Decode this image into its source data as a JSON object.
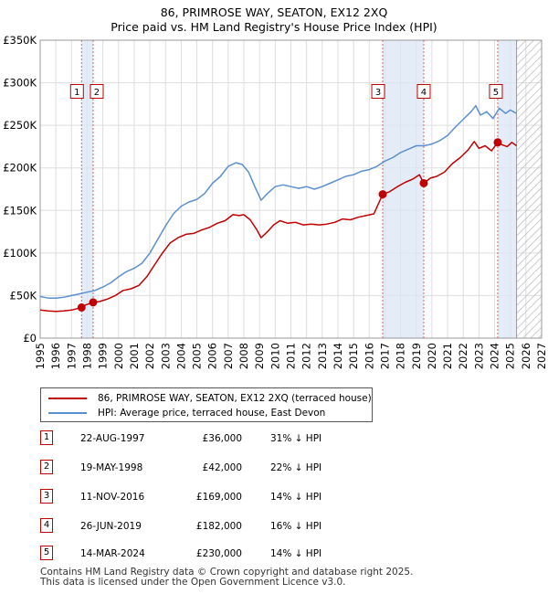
{
  "chart_data": {
    "type": "line",
    "title": "86, PRIMROSE WAY, SEATON, EX12 2XQ",
    "subtitle": "Price paid vs. HM Land Registry's House Price Index (HPI)",
    "xlabel": "",
    "ylabel": "",
    "xlim": [
      1995,
      2027
    ],
    "ylim": [
      0,
      350000
    ],
    "y_ticks": [
      0,
      50000,
      100000,
      150000,
      200000,
      250000,
      300000,
      350000
    ],
    "y_tick_labels": [
      "£0",
      "£50K",
      "£100K",
      "£150K",
      "£200K",
      "£250K",
      "£300K",
      "£350K"
    ],
    "x_ticks": [
      1995,
      1996,
      1997,
      1998,
      1999,
      2000,
      2001,
      2002,
      2003,
      2004,
      2005,
      2006,
      2007,
      2008,
      2009,
      2010,
      2011,
      2012,
      2013,
      2014,
      2015,
      2016,
      2017,
      2018,
      2019,
      2020,
      2021,
      2022,
      2023,
      2024,
      2025,
      2026,
      2027
    ],
    "x_tick_labels": [
      "1995",
      "1996",
      "1997",
      "1998",
      "1999",
      "2000",
      "2001",
      "2002",
      "2003",
      "2004",
      "2005",
      "2006",
      "2007",
      "2008",
      "2009",
      "2010",
      "2011",
      "2012",
      "2013",
      "2014",
      "2015",
      "2016",
      "2017",
      "2018",
      "2019",
      "2020",
      "2021",
      "2022",
      "2023",
      "2024",
      "2025",
      "2026",
      "2027"
    ],
    "grid": true,
    "legend_position": "below",
    "forecast_region_start": 2025.4,
    "series": [
      {
        "name": "86, PRIMROSE WAY, SEATON, EX12 2XQ (terraced house)",
        "color": "#c00000",
        "x": [
          1995.0,
          1995.5,
          1996.0,
          1996.5,
          1997.0,
          1997.64,
          1997.9,
          1998.38,
          1998.8,
          1999.3,
          1999.8,
          2000.3,
          2000.8,
          2001.3,
          2001.8,
          2002.3,
          2002.8,
          2003.3,
          2003.8,
          2004.3,
          2004.8,
          2005.3,
          2005.8,
          2006.3,
          2006.8,
          2007.3,
          2007.7,
          2008.0,
          2008.4,
          2008.8,
          2009.1,
          2009.5,
          2009.9,
          2010.3,
          2010.8,
          2011.3,
          2011.8,
          2012.3,
          2012.8,
          2013.3,
          2013.8,
          2014.3,
          2014.8,
          2015.3,
          2015.8,
          2016.3,
          2016.86,
          2017.3,
          2017.8,
          2018.3,
          2018.8,
          2019.2,
          2019.48,
          2019.9,
          2020.3,
          2020.8,
          2021.3,
          2021.8,
          2022.3,
          2022.7,
          2023.0,
          2023.4,
          2023.8,
          2024.2,
          2024.5,
          2024.8,
          2025.1,
          2025.4
        ],
        "values": [
          33000,
          32000,
          31500,
          32000,
          33000,
          36000,
          39000,
          42000,
          43000,
          46000,
          50000,
          56000,
          58000,
          62000,
          72000,
          86000,
          100000,
          112000,
          118000,
          122000,
          123000,
          127000,
          130000,
          135000,
          138000,
          145000,
          144000,
          145000,
          139000,
          128000,
          118000,
          125000,
          133000,
          138000,
          135000,
          136000,
          133000,
          134000,
          133000,
          134000,
          136000,
          140000,
          139000,
          142000,
          144000,
          146000,
          169000,
          172000,
          178000,
          183000,
          187000,
          192000,
          182000,
          188000,
          190000,
          195000,
          205000,
          212000,
          221000,
          231000,
          223000,
          226000,
          220000,
          230000,
          227000,
          225000,
          230000,
          226000
        ]
      },
      {
        "name": "HPI: Average price, terraced house, East Devon",
        "color": "#5b8fd0",
        "x": [
          1995.0,
          1995.5,
          1996.0,
          1996.5,
          1997.0,
          1997.5,
          1998.0,
          1998.5,
          1999.0,
          1999.5,
          2000.0,
          2000.5,
          2001.0,
          2001.5,
          2002.0,
          2002.5,
          2003.0,
          2003.5,
          2004.0,
          2004.5,
          2005.0,
          2005.5,
          2006.0,
          2006.5,
          2007.0,
          2007.5,
          2007.9,
          2008.3,
          2008.7,
          2009.1,
          2009.5,
          2010.0,
          2010.5,
          2011.0,
          2011.5,
          2012.0,
          2012.5,
          2013.0,
          2013.5,
          2014.0,
          2014.5,
          2015.0,
          2015.5,
          2016.0,
          2016.5,
          2017.0,
          2017.5,
          2018.0,
          2018.5,
          2019.0,
          2019.5,
          2020.0,
          2020.5,
          2021.0,
          2021.5,
          2022.0,
          2022.5,
          2022.8,
          2023.1,
          2023.5,
          2023.9,
          2024.3,
          2024.7,
          2025.0,
          2025.4
        ],
        "values": [
          49000,
          47000,
          47000,
          48000,
          50000,
          52000,
          54000,
          56000,
          60000,
          65000,
          72000,
          78000,
          82000,
          88000,
          100000,
          116000,
          132000,
          146000,
          155000,
          160000,
          163000,
          170000,
          182000,
          190000,
          202000,
          206000,
          204000,
          195000,
          178000,
          162000,
          170000,
          178000,
          180000,
          178000,
          176000,
          178000,
          175000,
          178000,
          182000,
          186000,
          190000,
          192000,
          196000,
          198000,
          202000,
          208000,
          212000,
          218000,
          222000,
          226000,
          226000,
          228000,
          232000,
          238000,
          248000,
          257000,
          266000,
          273000,
          262000,
          266000,
          258000,
          270000,
          264000,
          268000,
          264000
        ]
      }
    ],
    "sale_markers": [
      {
        "label": "1",
        "x": 1997.64,
        "y": 36000
      },
      {
        "label": "2",
        "x": 1998.38,
        "y": 42000
      },
      {
        "label": "3",
        "x": 2016.86,
        "y": 169000
      },
      {
        "label": "4",
        "x": 2019.48,
        "y": 182000
      },
      {
        "label": "5",
        "x": 2024.2,
        "y": 230000
      }
    ],
    "shaded_periods": [
      [
        1997.64,
        1998.38
      ],
      [
        2016.86,
        2019.48
      ],
      [
        2024.2,
        2025.4
      ]
    ]
  },
  "legend": {
    "items": [
      {
        "label": "86, PRIMROSE WAY, SEATON, EX12 2XQ (terraced house)",
        "color": "#c00000"
      },
      {
        "label": "HPI: Average price, terraced house, East Devon",
        "color": "#5b8fd0"
      }
    ]
  },
  "sales": [
    {
      "num": "1",
      "date": "22-AUG-1997",
      "price": "£36,000",
      "hpi": "31% ↓ HPI"
    },
    {
      "num": "2",
      "date": "19-MAY-1998",
      "price": "£42,000",
      "hpi": "22% ↓ HPI"
    },
    {
      "num": "3",
      "date": "11-NOV-2016",
      "price": "£169,000",
      "hpi": "14% ↓ HPI"
    },
    {
      "num": "4",
      "date": "26-JUN-2019",
      "price": "£182,000",
      "hpi": "16% ↓ HPI"
    },
    {
      "num": "5",
      "date": "14-MAR-2024",
      "price": "£230,000",
      "hpi": "14% ↓ HPI"
    }
  ],
  "footer": {
    "line1": "Contains HM Land Registry data © Crown copyright and database right 2025.",
    "line2": "This data is licensed under the Open Government Licence v3.0."
  }
}
